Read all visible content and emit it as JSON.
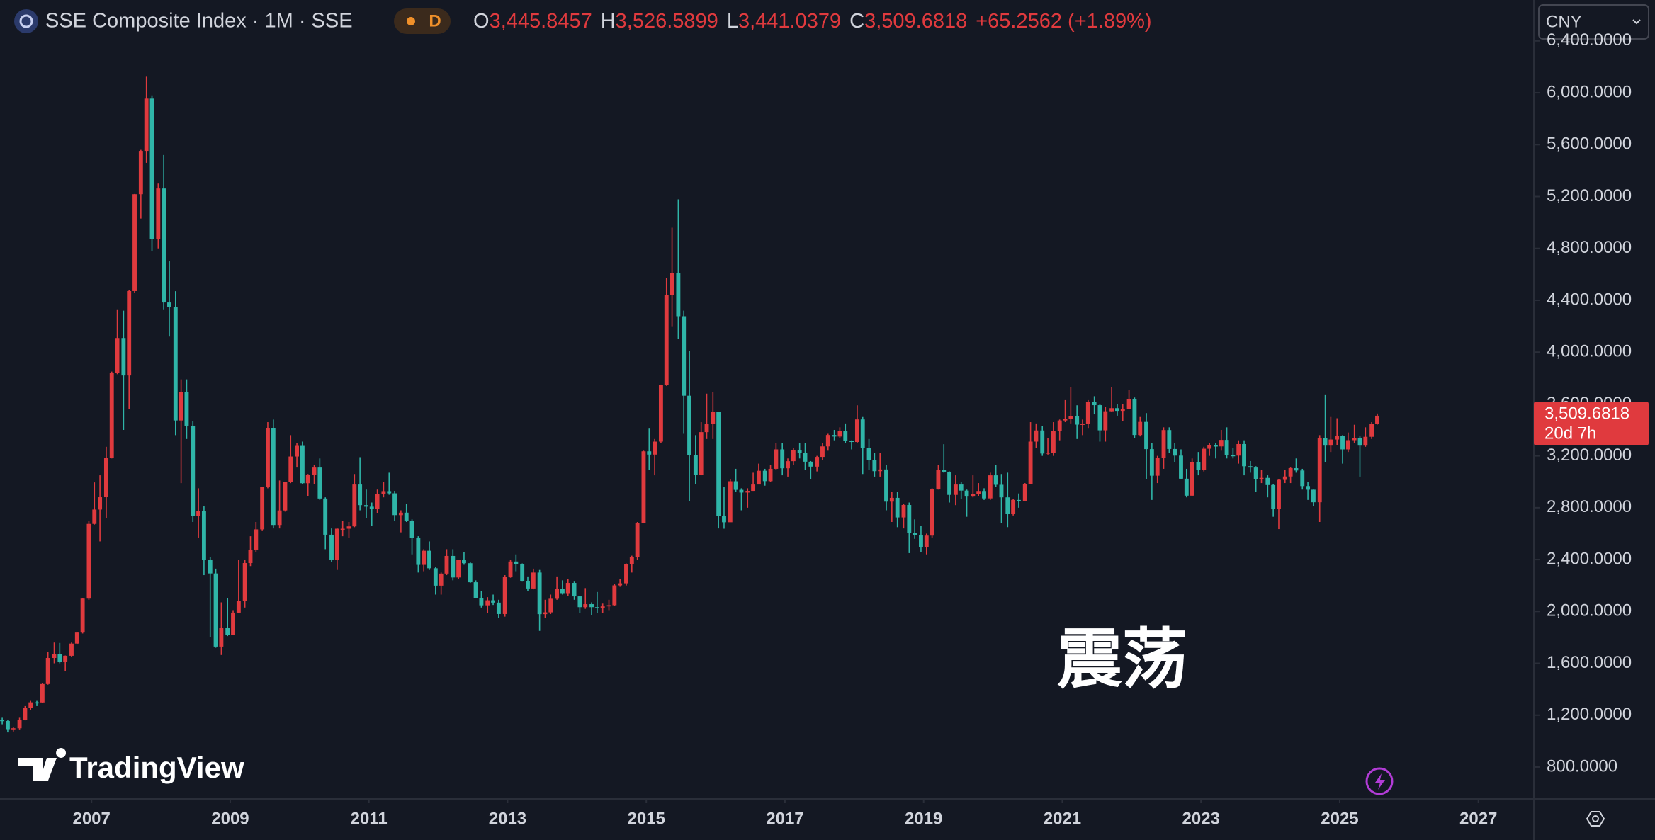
{
  "chart_data": {
    "type": "candlestick",
    "title": "SSE Composite Index · 1M · SSE",
    "interval_badge": "D",
    "legend": [
      {
        "key": "O",
        "value": "3,445.8457"
      },
      {
        "key": "H",
        "value": "3,526.5899"
      },
      {
        "key": "L",
        "value": "3,441.0379"
      },
      {
        "key": "C",
        "value": "3,509.6818"
      }
    ],
    "change": "+65.2562 (+1.89%)",
    "currency": "CNY",
    "price_label": {
      "value": "3,509.6818",
      "countdown": "20d 7h"
    },
    "annotation": "震荡",
    "watermark": "TradingView",
    "up_color": "#e03a3e",
    "down_color": "#2fb5a8",
    "grid": false,
    "xlim": [
      2005.68,
      2027.8
    ],
    "xticks": [
      2007,
      2009,
      2011,
      2013,
      2015,
      2017,
      2019,
      2021,
      2023,
      2025,
      2027
    ],
    "ylim": [
      554,
      6716
    ],
    "yticks": [
      {
        "value": 800,
        "label": "800.0000"
      },
      {
        "value": 1200,
        "label": "1,200.0000"
      },
      {
        "value": 1600,
        "label": "1,600.0000"
      },
      {
        "value": 2000,
        "label": "2,000.0000"
      },
      {
        "value": 2400,
        "label": "2,400.0000"
      },
      {
        "value": 2800,
        "label": "2,800.0000"
      },
      {
        "value": 3200,
        "label": "3,200.0000"
      },
      {
        "value": 3600,
        "label": "3,600.0000"
      },
      {
        "value": 4000,
        "label": "4,000.0000"
      },
      {
        "value": 4400,
        "label": "4,400.0000"
      },
      {
        "value": 4800,
        "label": "4,800.0000"
      },
      {
        "value": 5200,
        "label": "5,200.0000"
      },
      {
        "value": 5600,
        "label": "5,600.0000"
      },
      {
        "value": 6000,
        "label": "6,000.0000"
      },
      {
        "value": 6400,
        "label": "6,400.0000"
      }
    ],
    "x": [
      2005.67,
      2005.75,
      2005.83,
      2005.92,
      2006,
      2006.08,
      2006.17,
      2006.25,
      2006.33,
      2006.42,
      2006.5,
      2006.58,
      2006.67,
      2006.75,
      2006.83,
      2006.92,
      2007,
      2007.08,
      2007.17,
      2007.25,
      2007.33,
      2007.42,
      2007.5,
      2007.58,
      2007.67,
      2007.75,
      2007.83,
      2007.92,
      2008,
      2008.08,
      2008.17,
      2008.25,
      2008.33,
      2008.42,
      2008.5,
      2008.58,
      2008.67,
      2008.75,
      2008.83,
      2008.92,
      2009,
      2009.08,
      2009.17,
      2009.25,
      2009.33,
      2009.42,
      2009.5,
      2009.58,
      2009.67,
      2009.75,
      2009.83,
      2009.92,
      2010,
      2010.08,
      2010.17,
      2010.25,
      2010.33,
      2010.42,
      2010.5,
      2010.58,
      2010.67,
      2010.75,
      2010.83,
      2010.92,
      2011,
      2011.08,
      2011.17,
      2011.25,
      2011.33,
      2011.42,
      2011.5,
      2011.58,
      2011.67,
      2011.75,
      2011.83,
      2011.92,
      2012,
      2012.08,
      2012.17,
      2012.25,
      2012.33,
      2012.42,
      2012.5,
      2012.58,
      2012.67,
      2012.75,
      2012.83,
      2012.92,
      2013,
      2013.08,
      2013.17,
      2013.25,
      2013.33,
      2013.42,
      2013.5,
      2013.58,
      2013.67,
      2013.75,
      2013.83,
      2013.92,
      2014,
      2014.08,
      2014.17,
      2014.25,
      2014.33,
      2014.42,
      2014.5,
      2014.58,
      2014.67,
      2014.75,
      2014.83,
      2014.92,
      2015,
      2015.08,
      2015.17,
      2015.25,
      2015.33,
      2015.42,
      2015.5,
      2015.58,
      2015.67,
      2015.75,
      2015.83,
      2015.92,
      2016,
      2016.08,
      2016.17,
      2016.25,
      2016.33,
      2016.42,
      2016.5,
      2016.58,
      2016.67,
      2016.75,
      2016.83,
      2016.92,
      2017,
      2017.08,
      2017.17,
      2017.25,
      2017.33,
      2017.42,
      2017.5,
      2017.58,
      2017.67,
      2017.75,
      2017.83,
      2017.92,
      2018,
      2018.08,
      2018.17,
      2018.25,
      2018.33,
      2018.42,
      2018.5,
      2018.58,
      2018.67,
      2018.75,
      2018.83,
      2018.92,
      2019,
      2019.08,
      2019.17,
      2019.25,
      2019.33,
      2019.42,
      2019.5,
      2019.58,
      2019.67,
      2019.75,
      2019.83,
      2019.92,
      2020,
      2020.08,
      2020.17,
      2020.25,
      2020.33,
      2020.42,
      2020.5,
      2020.58,
      2020.67,
      2020.75,
      2020.83,
      2020.92,
      2021,
      2021.08,
      2021.17,
      2021.25,
      2021.33,
      2021.42,
      2021.5,
      2021.58,
      2021.67,
      2021.75,
      2021.83,
      2021.92,
      2022,
      2022.08,
      2022.17,
      2022.25,
      2022.33,
      2022.42,
      2022.5,
      2022.58,
      2022.67,
      2022.75,
      2022.83,
      2022.92,
      2023,
      2023.08,
      2023.17,
      2023.25,
      2023.33,
      2023.42,
      2023.5,
      2023.58,
      2023.67,
      2023.75,
      2023.83,
      2023.92,
      2024,
      2024.08,
      2024.17,
      2024.25,
      2024.33,
      2024.42,
      2024.5,
      2024.58,
      2024.67,
      2024.75,
      2024.83,
      2024.92,
      2025,
      2025.08,
      2025.17,
      2025.25,
      2025.33,
      2025.42,
      2025.5
    ],
    "open": [
      1162,
      1155,
      1092,
      1099,
      1161,
      1258,
      1299,
      1298,
      1440,
      1641,
      1672,
      1612,
      1658,
      1752,
      1837,
      2099,
      2675,
      2786,
      2881,
      3183,
      3841,
      4109,
      3820,
      4471,
      5218,
      5552,
      5955,
      4871,
      5262,
      4383,
      4348,
      3473,
      3693,
      3433,
      2736,
      2775,
      2397,
      2293,
      1729,
      1871,
      1821,
      1991,
      2082,
      2373,
      2477,
      2633,
      2959,
      3412,
      2667,
      2779,
      2996,
      3195,
      3277,
      2989,
      3051,
      3110,
      2871,
      2592,
      2398,
      2638,
      2638,
      2656,
      2979,
      2820,
      2808,
      2791,
      2905,
      2928,
      2911,
      2743,
      2762,
      2701,
      2568,
      2359,
      2468,
      2333,
      2199,
      2292,
      2428,
      2262,
      2396,
      2372,
      2225,
      2103,
      2047,
      2086,
      2068,
      1980,
      2269,
      2385,
      2365,
      2236,
      2177,
      2300,
      1979,
      1993,
      2098,
      2175,
      2141,
      2220,
      2116,
      2033,
      2056,
      2033,
      2026,
      2039,
      2048,
      2201,
      2217,
      2364,
      2420,
      2683,
      3235,
      3210,
      3310,
      3748,
      4441,
      4612,
      4277,
      3664,
      3206,
      3053,
      3383,
      3445,
      3539,
      2738,
      2688,
      3004,
      2938,
      2917,
      2930,
      2979,
      3085,
      3005,
      3100,
      3250,
      3104,
      3159,
      3242,
      3223,
      3155,
      3117,
      3192,
      3273,
      3361,
      3349,
      3393,
      3317,
      3307,
      3481,
      3259,
      3169,
      3082,
      3095,
      2847,
      2876,
      2725,
      2821,
      2603,
      2588,
      2494,
      2585,
      2941,
      3091,
      3078,
      2899,
      2979,
      2932,
      2886,
      2905,
      2929,
      2872,
      3050,
      2977,
      2880,
      2750,
      2860,
      2852,
      2985,
      3310,
      3396,
      3218,
      3225,
      3392,
      3473,
      3483,
      3509,
      3441,
      3447,
      3615,
      3591,
      3397,
      3544,
      3568,
      3547,
      3564,
      3640,
      3361,
      3462,
      3252,
      3047,
      3186,
      3399,
      3253,
      3202,
      3024,
      2893,
      3151,
      3089,
      3255,
      3280,
      3273,
      3323,
      3205,
      3202,
      3291,
      3120,
      3110,
      3018,
      3030,
      2975,
      2789,
      3015,
      3041,
      3105,
      3087,
      2967,
      2939,
      2842,
      3336,
      3279,
      3326,
      3352,
      3250,
      3321,
      3336,
      3279,
      3347,
      3445.8457
    ],
    "high": [
      1180,
      1160,
      1110,
      1180,
      1270,
      1310,
      1310,
      1445,
      1690,
      1760,
      1757,
      1660,
      1760,
      1840,
      2100,
      2700,
      2995,
      3050,
      3270,
      3850,
      4330,
      4320,
      4480,
      5220,
      5560,
      6124,
      5980,
      5300,
      5520,
      4700,
      4470,
      3790,
      3790,
      3470,
      2950,
      2810,
      2420,
      2330,
      2070,
      2100,
      2010,
      2400,
      2400,
      2580,
      2690,
      2960,
      3460,
      3480,
      3010,
      3000,
      3360,
      3300,
      3310,
      3060,
      3130,
      3180,
      2880,
      2640,
      2640,
      2700,
      2690,
      3060,
      3190,
      2940,
      2840,
      2940,
      3000,
      3070,
      2930,
      2780,
      2830,
      2710,
      2580,
      2480,
      2540,
      2340,
      2300,
      2480,
      2480,
      2400,
      2460,
      2380,
      2240,
      2160,
      2110,
      2130,
      2090,
      2280,
      2400,
      2440,
      2370,
      2270,
      2330,
      2320,
      2090,
      2130,
      2270,
      2240,
      2250,
      2230,
      2120,
      2180,
      2070,
      2150,
      2060,
      2090,
      2210,
      2250,
      2370,
      2430,
      2690,
      3240,
      3410,
      3330,
      3750,
      4570,
      4960,
      5178,
      4320,
      4010,
      3360,
      3460,
      3680,
      3690,
      3540,
      2960,
      3020,
      3100,
      2950,
      2950,
      3070,
      3140,
      3100,
      3130,
      3300,
      3300,
      3180,
      3260,
      3300,
      3300,
      3160,
      3200,
      3300,
      3370,
      3400,
      3420,
      3450,
      3320,
      3590,
      3500,
      3330,
      3220,
      3220,
      3130,
      2920,
      2920,
      2830,
      2840,
      2710,
      2660,
      2600,
      2950,
      3130,
      3290,
      3080,
      3050,
      3000,
      2940,
      3050,
      2990,
      2950,
      3070,
      3130,
      3060,
      3070,
      2870,
      2910,
      2990,
      3460,
      3450,
      3430,
      3340,
      3460,
      3480,
      3630,
      3730,
      3590,
      3480,
      3630,
      3660,
      3600,
      3580,
      3730,
      3600,
      3600,
      3710,
      3650,
      3500,
      3530,
      3300,
      3200,
      3420,
      3420,
      3300,
      3250,
      3100,
      3180,
      3230,
      3270,
      3300,
      3300,
      3400,
      3420,
      3260,
      3320,
      3320,
      3160,
      3120,
      3090,
      3050,
      2980,
      3020,
      3090,
      3110,
      3180,
      3100,
      3000,
      2940,
      3360,
      3674,
      3500,
      3490,
      3360,
      3380,
      3440,
      3350,
      3420,
      3460,
      3526.5899
    ],
    "low": [
      1130,
      1067,
      1074,
      1090,
      1160,
      1240,
      1270,
      1295,
      1435,
      1600,
      1600,
      1540,
      1650,
      1750,
      1830,
      2090,
      2670,
      2540,
      2720,
      3180,
      3830,
      3400,
      3560,
      4460,
      5030,
      5460,
      4780,
      4800,
      4330,
      4120,
      3360,
      2990,
      3330,
      2690,
      2570,
      2280,
      1800,
      1720,
      1664,
      1810,
      1820,
      1990,
      2030,
      2350,
      2460,
      2620,
      2950,
      2640,
      2640,
      2770,
      2990,
      3110,
      2980,
      2890,
      2980,
      2860,
      2480,
      2380,
      2320,
      2580,
      2570,
      2650,
      2780,
      2720,
      2660,
      2760,
      2880,
      2900,
      2700,
      2610,
      2690,
      2440,
      2300,
      2310,
      2320,
      2130,
      2130,
      2280,
      2240,
      2250,
      2360,
      2220,
      2100,
      2030,
      1990,
      2050,
      1950,
      1960,
      2260,
      2310,
      2230,
      2160,
      2170,
      1850,
      1950,
      1980,
      2090,
      2130,
      2120,
      2090,
      1990,
      2020,
      1970,
      1990,
      1990,
      2010,
      2040,
      2190,
      2200,
      2300,
      2400,
      2680,
      3090,
      3050,
      3300,
      3740,
      4200,
      4100,
      3370,
      2850,
      2980,
      3050,
      3330,
      3330,
      2640,
      2638,
      2690,
      2920,
      2780,
      2800,
      2930,
      2980,
      2970,
      3000,
      3090,
      3050,
      3040,
      3130,
      3180,
      3090,
      3020,
      3080,
      3170,
      3240,
      3320,
      3340,
      3300,
      3250,
      3300,
      3060,
      3090,
      3040,
      3040,
      2780,
      2690,
      2650,
      2640,
      2450,
      2560,
      2460,
      2440,
      2570,
      2940,
      3070,
      2840,
      2820,
      2870,
      2730,
      2880,
      2890,
      2860,
      2860,
      2960,
      2680,
      2650,
      2740,
      2800,
      2850,
      2980,
      3260,
      3200,
      3210,
      3200,
      3320,
      3460,
      3450,
      3330,
      3360,
      3410,
      3520,
      3310,
      3310,
      3540,
      3510,
      3470,
      3560,
      3340,
      3350,
      3020,
      2860,
      2990,
      3100,
      3220,
      3150,
      3020,
      2880,
      2890,
      3050,
      3080,
      3200,
      3180,
      3240,
      3180,
      3180,
      3140,
      3050,
      3070,
      2920,
      2990,
      2880,
      2730,
      2635,
      2990,
      2990,
      3070,
      2940,
      2860,
      2810,
      2690,
      3150,
      3230,
      3280,
      3140,
      3230,
      3300,
      3040,
      3270,
      3330,
      3441.0379
    ],
    "close": [
      1155,
      1092,
      1099,
      1161,
      1258,
      1299,
      1298,
      1440,
      1641,
      1672,
      1612,
      1658,
      1752,
      1837,
      2099,
      2675,
      2786,
      2881,
      3183,
      3841,
      4109,
      3820,
      4471,
      5218,
      5552,
      5955,
      4871,
      5262,
      4383,
      4348,
      3473,
      3693,
      3433,
      2736,
      2775,
      2397,
      2293,
      1729,
      1871,
      1821,
      1991,
      2082,
      2373,
      2477,
      2633,
      2959,
      3412,
      2667,
      2779,
      2996,
      3195,
      3277,
      2989,
      3051,
      3110,
      2871,
      2592,
      2398,
      2638,
      2638,
      2656,
      2979,
      2820,
      2808,
      2791,
      2905,
      2928,
      2911,
      2743,
      2762,
      2701,
      2568,
      2359,
      2468,
      2333,
      2199,
      2292,
      2428,
      2262,
      2396,
      2372,
      2225,
      2103,
      2047,
      2086,
      2068,
      1980,
      2269,
      2385,
      2365,
      2236,
      2177,
      2300,
      1979,
      1993,
      2098,
      2175,
      2141,
      2220,
      2116,
      2033,
      2056,
      2033,
      2026,
      2039,
      2048,
      2201,
      2217,
      2364,
      2420,
      2683,
      3235,
      3210,
      3310,
      3748,
      4441,
      4612,
      4277,
      3664,
      3206,
      3053,
      3383,
      3445,
      3539,
      2738,
      2688,
      3004,
      2938,
      2917,
      2930,
      2979,
      3085,
      3005,
      3100,
      3250,
      3104,
      3159,
      3242,
      3223,
      3155,
      3117,
      3192,
      3273,
      3361,
      3349,
      3393,
      3317,
      3307,
      3481,
      3259,
      3169,
      3082,
      3095,
      2847,
      2876,
      2725,
      2821,
      2603,
      2588,
      2494,
      2585,
      2941,
      3091,
      3078,
      2899,
      2979,
      2932,
      2886,
      2905,
      2929,
      2872,
      3050,
      2977,
      2880,
      2750,
      2860,
      2852,
      2985,
      3310,
      3396,
      3218,
      3225,
      3392,
      3473,
      3483,
      3509,
      3441,
      3447,
      3615,
      3591,
      3397,
      3544,
      3568,
      3547,
      3564,
      3640,
      3361,
      3462,
      3252,
      3047,
      3186,
      3399,
      3253,
      3202,
      3024,
      2893,
      3151,
      3089,
      3255,
      3280,
      3273,
      3323,
      3205,
      3202,
      3291,
      3120,
      3110,
      3018,
      3030,
      2975,
      2789,
      3015,
      3041,
      3105,
      3087,
      2967,
      2939,
      2842,
      3336,
      3279,
      3326,
      3352,
      3250,
      3321,
      3336,
      3279,
      3347,
      3444,
      3509.6818
    ]
  }
}
